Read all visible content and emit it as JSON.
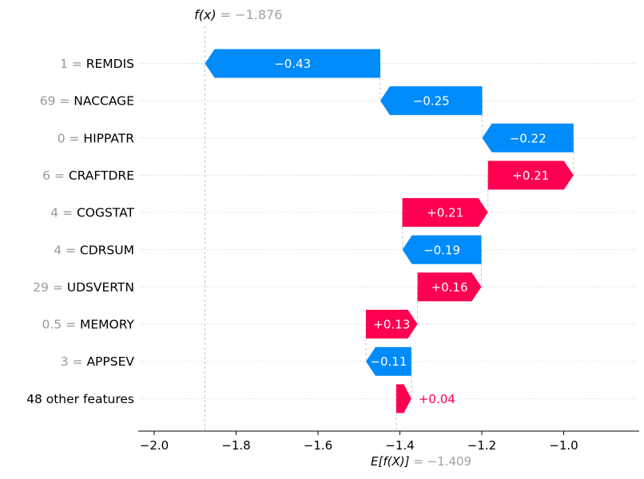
{
  "figure_title": "SHAP waterfall plot",
  "annotations": {
    "fx_name": "f(x)",
    "fx_rest": " = −1.876",
    "ef_name": "E[f(X)]",
    "ef_rest": " = −1.409"
  },
  "chart_data": {
    "type": "waterfall",
    "title": "f(x) = −1.876",
    "xlabel": "E[f(X)] = −1.409",
    "fx_value": -1.876,
    "base_value": -1.409,
    "xlim": [
      -2.04,
      -0.83
    ],
    "x_ticks": [
      -2.0,
      -1.8,
      -1.6,
      -1.4,
      -1.2,
      -1.0
    ],
    "x_tick_labels": [
      "−2.0",
      "−1.8",
      "−1.6",
      "−1.4",
      "−1.2",
      "−1.0"
    ],
    "grid": "horizontal-dotted",
    "legend": "none",
    "colors": {
      "positive": "#ff0051",
      "negative": "#008bfb",
      "bar_text": "#ffffff",
      "muted_text": "#999999",
      "annotation_gray": "#a2a2a2",
      "gridline": "#cccccc",
      "connector": "#c3c3c3",
      "axis": "#000000"
    },
    "rows": [
      {
        "feature": "REMDIS",
        "feature_value": "1",
        "shap": -0.428,
        "display": "−0.43",
        "label_outside": false
      },
      {
        "feature": "NACCAGE",
        "feature_value": "69",
        "shap": -0.249,
        "display": "−0.25",
        "label_outside": false
      },
      {
        "feature": "HIPPATR",
        "feature_value": "0",
        "shap": -0.223,
        "display": "−0.22",
        "label_outside": false
      },
      {
        "feature": "CRAFTDRE",
        "feature_value": "6",
        "shap": 0.209,
        "display": "+0.21",
        "label_outside": false
      },
      {
        "feature": "COGSTAT",
        "feature_value": "4",
        "shap": 0.209,
        "display": "+0.21",
        "label_outside": false
      },
      {
        "feature": "CDRSUM",
        "feature_value": "4",
        "shap": -0.193,
        "display": "−0.19",
        "label_outside": false
      },
      {
        "feature": "UDSVERTN",
        "feature_value": "29",
        "shap": 0.156,
        "display": "+0.16",
        "label_outside": false
      },
      {
        "feature": "MEMORY",
        "feature_value": "0.5",
        "shap": 0.126,
        "display": "+0.13",
        "label_outside": false
      },
      {
        "feature": "APPSEV",
        "feature_value": "3",
        "shap": -0.111,
        "display": "−0.11",
        "label_outside": false
      },
      {
        "feature": "48 other features",
        "feature_value": null,
        "shap": 0.037,
        "display": "+0.04",
        "label_outside": true
      }
    ]
  }
}
